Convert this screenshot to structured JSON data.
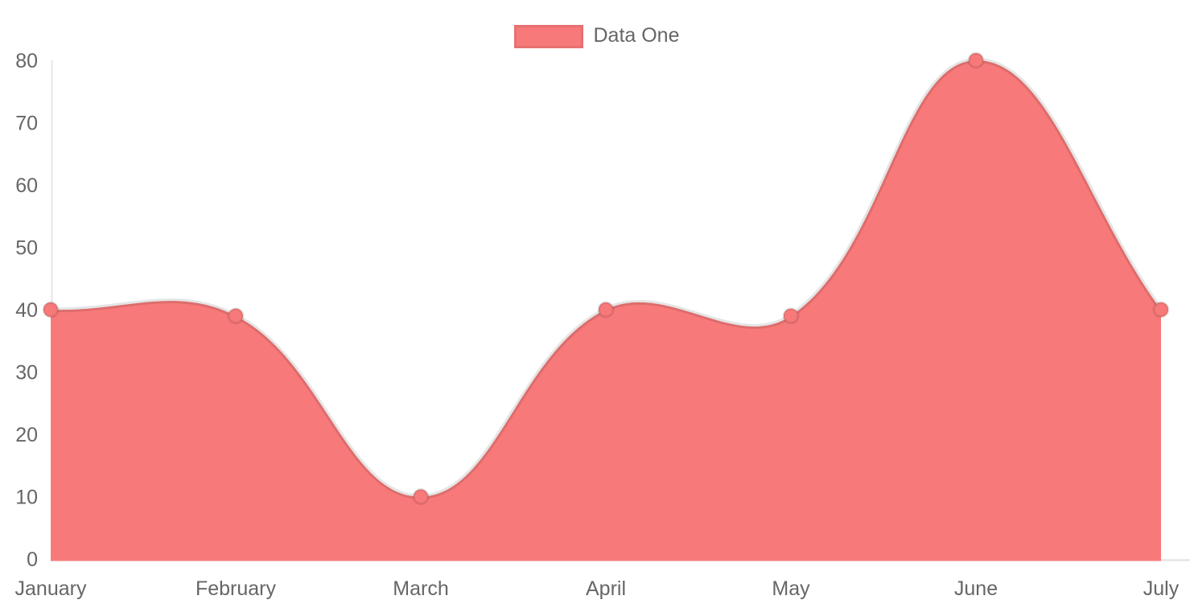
{
  "chart_data": {
    "type": "area",
    "title": "",
    "categories": [
      "January",
      "February",
      "March",
      "April",
      "May",
      "June",
      "July"
    ],
    "series": [
      {
        "name": "Data One",
        "values": [
          40,
          39,
          10,
          40,
          39,
          80,
          40
        ]
      }
    ],
    "yticks": [
      0,
      10,
      20,
      30,
      40,
      50,
      60,
      70,
      80
    ],
    "ylim": [
      0,
      80
    ],
    "xlabel": "",
    "ylabel": "",
    "grid": false,
    "legend_position": "top",
    "colors": {
      "fill": "#f87979",
      "line": "rgba(0,0,0,0.10)",
      "point_fill": "#f87979",
      "point_border": "rgba(0,0,0,0.10)",
      "axis_line": "#e6e6e6",
      "label_text": "#666666"
    }
  }
}
